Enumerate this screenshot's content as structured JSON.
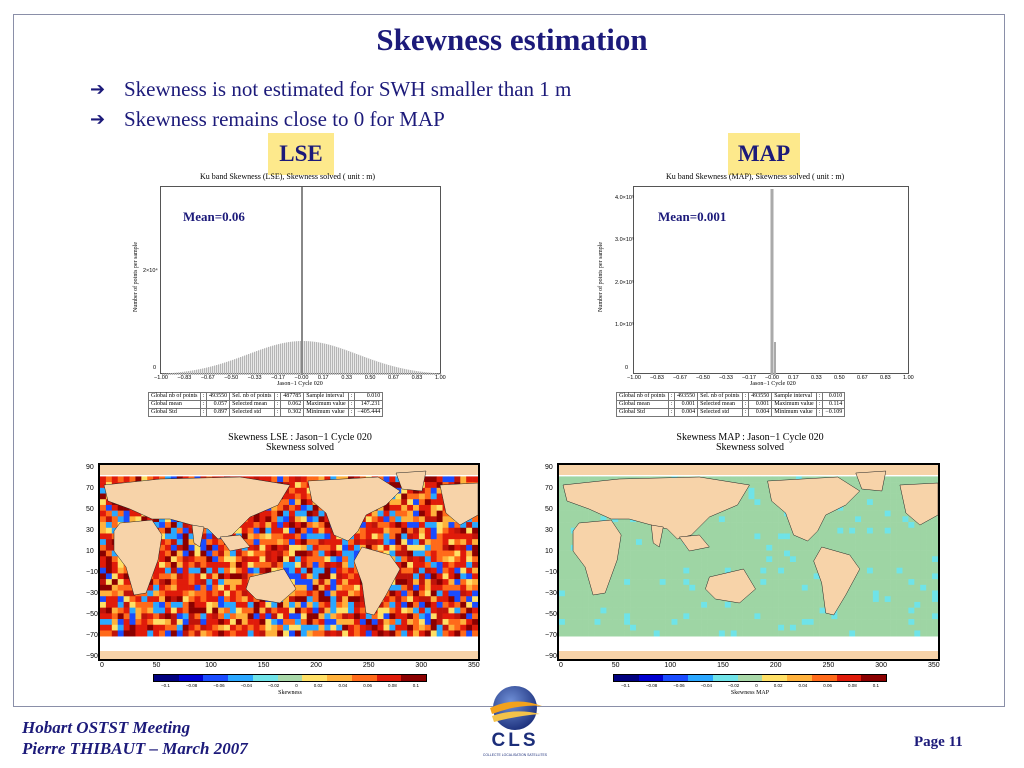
{
  "slide": {
    "title": "Skewness estimation",
    "bullets": [
      "Skewness is not estimated for SWH smaller than 1 m",
      "Skewness remains close to 0 for MAP"
    ]
  },
  "panels": {
    "lse": {
      "badge": "LSE",
      "histogram_title": "Ku band Skewness (LSE), Skewness solved  ( unit : m)",
      "ylabel": "Number of points per sample",
      "yticks": [
        "2×10⁴",
        "0"
      ],
      "xticks": [
        "−1.00",
        "−0.83",
        "−0.67",
        "−0.50",
        "−0.33",
        "−0.17",
        "−0.00",
        "0.17",
        "0.33",
        "0.50",
        "0.67",
        "0.83",
        "1.00"
      ],
      "xlabel": "Jason−1 Cycle 020",
      "mean_label": "Mean=0.06",
      "stats": [
        [
          "Global nb of points",
          ":",
          "493550",
          "Sel. nb of points",
          ":",
          "487785",
          "Sample interval",
          ":",
          "0.010"
        ],
        [
          "Global mean",
          ":",
          "0.057",
          "Selected mean",
          ":",
          "0.062",
          "Maximum value",
          ":",
          "147.231"
        ],
        [
          "Global Std",
          ":",
          "0.897",
          "Selected std",
          ":",
          "0.302",
          "Minimum value",
          ":",
          "−405.444"
        ]
      ],
      "map_title_1": "Skewness LSE : Jason−1 Cycle 020",
      "map_title_2": "Skewness solved",
      "colorbar_label": "Skewness"
    },
    "map": {
      "badge": "MAP",
      "histogram_title": "Ku band Skewness (MAP), Skewness solved  ( unit : m)",
      "ylabel": "Number of points per sample",
      "yticks": [
        "4.0×10⁵",
        "3.0×10⁵",
        "2.0×10⁵",
        "1.0×10⁵",
        "0"
      ],
      "xticks": [
        "−1.00",
        "−0.83",
        "−0.67",
        "−0.50",
        "−0.33",
        "−0.17",
        "−0.00",
        "0.17",
        "0.33",
        "0.50",
        "0.67",
        "0.83",
        "1.00"
      ],
      "xlabel": "Jason−1 Cycle 020",
      "mean_label": "Mean=0.001",
      "stats": [
        [
          "Global nb of points",
          ":",
          "493550",
          "Sel. nb of points",
          ":",
          "493550",
          "Sample interval",
          ":",
          "0.010"
        ],
        [
          "Global mean",
          ":",
          "0.001",
          "Selected mean",
          ":",
          "0.001",
          "Maximum value",
          ":",
          "0.114"
        ],
        [
          "Global Std",
          ":",
          "0.004",
          "Selected std",
          ":",
          "0.004",
          "Minimum value",
          ":",
          "−0.109"
        ]
      ],
      "map_title_1": "Skewness MAP : Jason−1 Cycle 020",
      "map_title_2": "Skewness solved",
      "colorbar_label": "Skewness MAP"
    }
  },
  "map_axes": {
    "lat": [
      "90",
      "70",
      "50",
      "30",
      "10",
      "−10",
      "−30",
      "−50",
      "−70",
      "−90"
    ],
    "lon": [
      "0",
      "50",
      "100",
      "150",
      "200",
      "250",
      "300",
      "350"
    ]
  },
  "colorbar": {
    "ticks": [
      "−0.1",
      "−0.08",
      "−0.06",
      "−0.04",
      "−0.02",
      "0",
      "0.02",
      "0.04",
      "0.06",
      "0.08",
      "0.1"
    ],
    "colors": [
      "#00007f",
      "#0000d0",
      "#1a4cff",
      "#2aa7ff",
      "#6fe3e8",
      "#a8d8a8",
      "#ffe066",
      "#ffb13b",
      "#ff6a1a",
      "#e01b0a",
      "#8b0000"
    ]
  },
  "footer": {
    "line1": "Hobart OSTST Meeting",
    "line2": "Pierre THIBAUT – March 2007",
    "page": "Page 11",
    "logo_text": "CLS",
    "logo_sub": "COLLECTE LOCALISATION SATELLITES"
  },
  "colors": {
    "title": "#1c1a7a",
    "badge_bg": "#fde98c",
    "land": "#f7d3a9",
    "ocean_map": "#9ed5a4"
  }
}
